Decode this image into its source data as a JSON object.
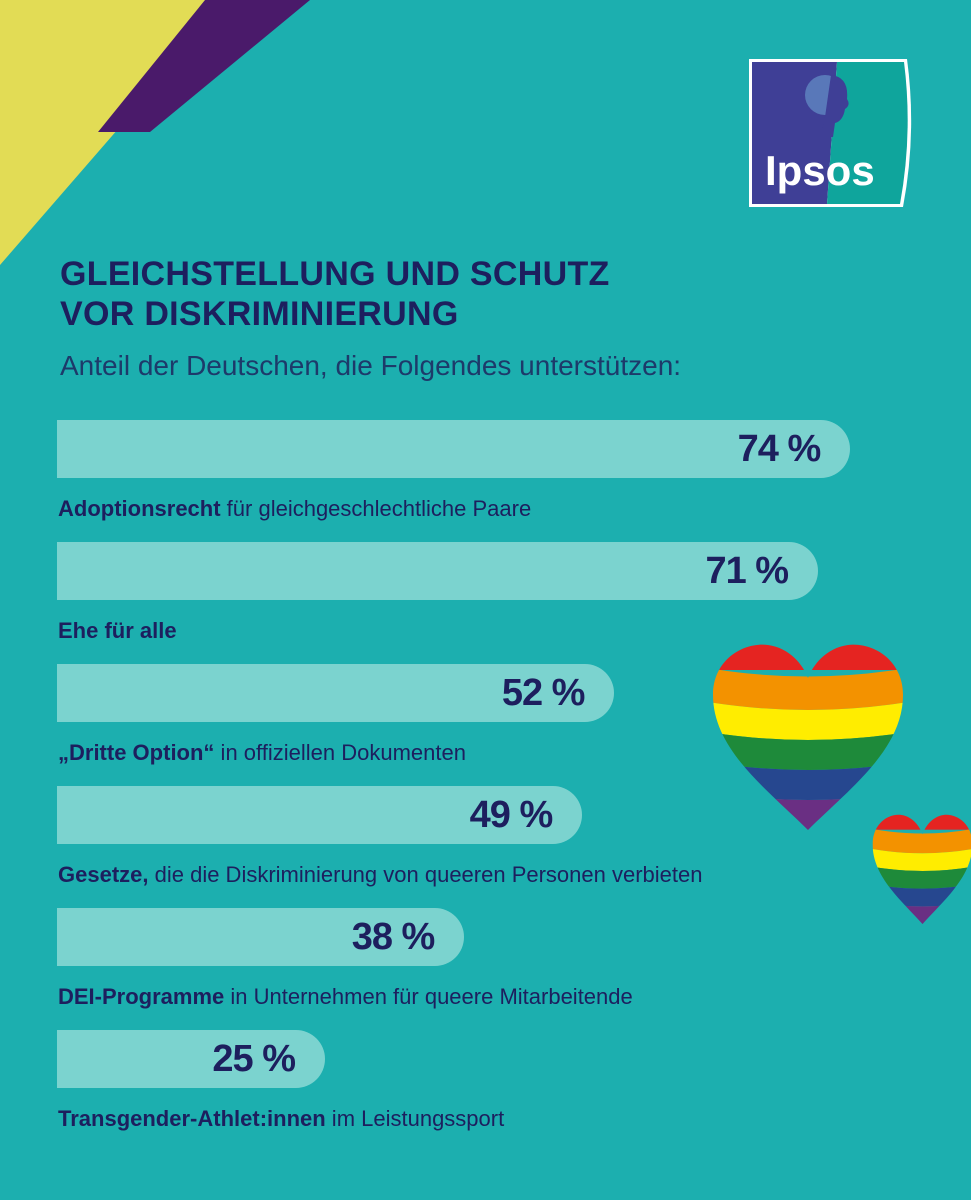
{
  "logo": {
    "text": "Ipsos",
    "colors": {
      "left": "#3f3f96",
      "right": "#0fa59c"
    }
  },
  "colors": {
    "background": "#1cafaf",
    "bar": "#7bd3cf",
    "text": "#1d1f5e",
    "yellow": "#e2dc55",
    "purple": "#4a1a6a"
  },
  "title_line1": "GLEICHSTELLUNG UND SCHUTZ",
  "title_line2": "VOR DISKRIMINIERUNG",
  "subtitle": "Anteil der Deutschen, die Folgendes unterstützen:",
  "chart_data": {
    "type": "bar",
    "orientation": "horizontal",
    "unit": "%",
    "categories": [
      {
        "bold": "Adoptionsrecht",
        "rest": " für gleichgeschlechtliche Paare"
      },
      {
        "bold": "Ehe für alle",
        "rest": ""
      },
      {
        "bold": "„Dritte Option“",
        "rest": " in offiziellen Dokumenten"
      },
      {
        "bold": "Gesetze,",
        "rest": " die die Diskriminierung von queeren Personen verbieten"
      },
      {
        "bold": "DEI-Programme",
        "rest": " in Unternehmen für queere Mitarbeitende"
      },
      {
        "bold": "Transgender-Athlet:innen",
        "rest": " im Leistungssport"
      }
    ],
    "values": [
      74,
      71,
      52,
      49,
      38,
      25
    ],
    "value_labels": [
      "74 %",
      "71 %",
      "52 %",
      "49 %",
      "38 %",
      "25 %"
    ],
    "xlim": [
      0,
      100
    ]
  },
  "decorations": [
    "rainbow-heart-large",
    "rainbow-heart-small"
  ]
}
